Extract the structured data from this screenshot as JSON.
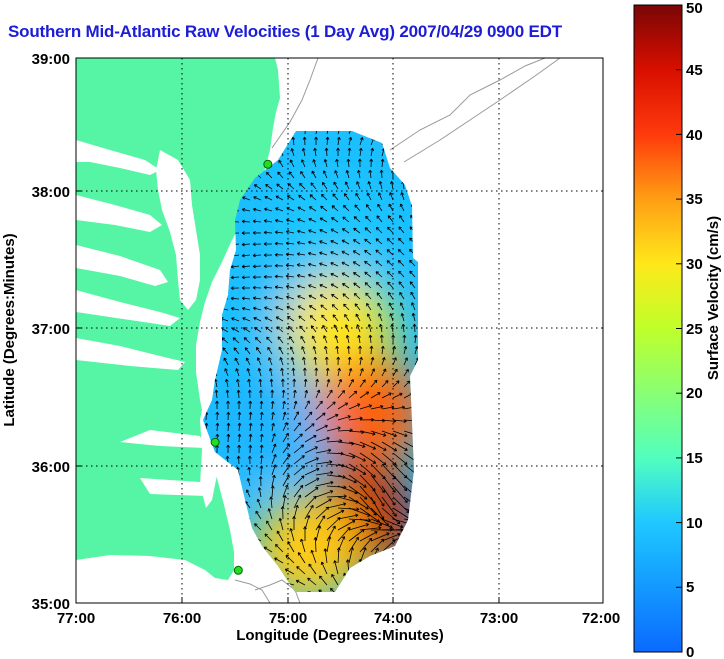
{
  "title": "Southern Mid-Atlantic Raw Velocities (1 Day Avg) 2007/04/29 0900 EDT",
  "xlabel": "Longitude (Degrees:Minutes)",
  "ylabel": "Latitude (Degrees:Minutes)",
  "x_ticks": [
    "77:00",
    "76:00",
    "75:00",
    "74:00",
    "73:00",
    "72:00"
  ],
  "y_ticks": [
    "39:00",
    "38:00",
    "37:00",
    "36:00",
    "35:00"
  ],
  "colorbar": {
    "label": "Surface Velocity (cm/s)",
    "ticks": [
      "0",
      "5",
      "10",
      "15",
      "20",
      "25",
      "30",
      "35",
      "40",
      "45",
      "50"
    ],
    "min": 0,
    "max": 50
  },
  "chart_data": {
    "type": "heatmap",
    "title": "Southern Mid-Atlantic Raw Velocities (1 Day Avg) 2007/04/29 0900 EDT",
    "xlabel": "Longitude (Degrees:Minutes)",
    "ylabel": "Latitude (Degrees:Minutes)",
    "xlim": [
      -77,
      -72
    ],
    "ylim": [
      35,
      39
    ],
    "color_range": [
      0,
      50
    ],
    "units": "cm/s",
    "grid": true,
    "stations": [
      {
        "lon": -75.18,
        "lat": 38.22
      },
      {
        "lon": -75.68,
        "lat": 36.18
      },
      {
        "lon": -75.46,
        "lat": 35.24
      }
    ],
    "regions": [
      {
        "lon": -74.6,
        "lat": 37.7,
        "speed": 10
      },
      {
        "lon": -75.2,
        "lat": 37.2,
        "speed": 9
      },
      {
        "lon": -74.5,
        "lat": 37.0,
        "speed": 30
      },
      {
        "lon": -74.2,
        "lat": 36.4,
        "speed": 38
      },
      {
        "lon": -75.2,
        "lat": 36.3,
        "speed": 8
      },
      {
        "lon": -74.3,
        "lat": 35.6,
        "speed": 46
      },
      {
        "lon": -74.8,
        "lat": 35.4,
        "speed": 32
      }
    ]
  }
}
